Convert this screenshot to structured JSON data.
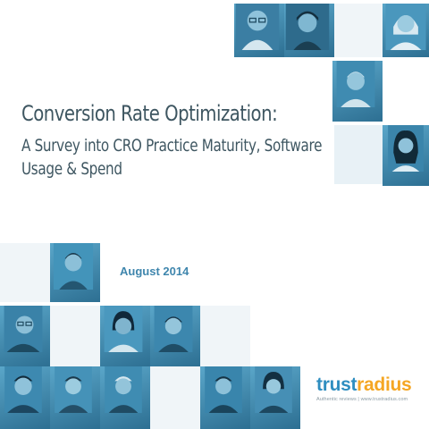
{
  "title": {
    "line1": "Conversion Rate Optimization:",
    "line2": "A Survey into CRO Practice Maturity, Software Usage & Spend"
  },
  "date": "August 2014",
  "logo": {
    "word_part1": "trust",
    "word_part2": "radius",
    "tagline": "Authentic reviews | www.trustradius.com"
  },
  "colors": {
    "title": "#3e5661",
    "accent": "#3f86ad",
    "tile_blue": "#3a86ad",
    "logo_blue": "#2f8ec0",
    "logo_orange": "#f5a623"
  }
}
